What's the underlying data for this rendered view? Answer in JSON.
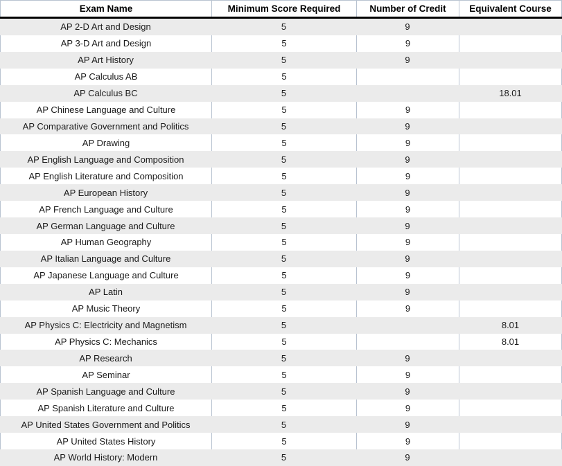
{
  "colors": {
    "band": "#ebebeb",
    "grid": "#b9c3d1",
    "text": "#1a1a1a",
    "header_border": "#000000"
  },
  "table": {
    "columns": [
      {
        "key": "exam",
        "label": "Exam Name"
      },
      {
        "key": "min_score",
        "label": "Minimum Score Required"
      },
      {
        "key": "credits",
        "label": "Number of Credit"
      },
      {
        "key": "equivalent",
        "label": "Equivalent Course"
      }
    ],
    "rows": [
      {
        "exam": "AP 2-D Art and Design",
        "min_score": "5",
        "credits": "9",
        "equivalent": ""
      },
      {
        "exam": "AP 3-D Art and Design",
        "min_score": "5",
        "credits": "9",
        "equivalent": ""
      },
      {
        "exam": "AP Art History",
        "min_score": "5",
        "credits": "9",
        "equivalent": ""
      },
      {
        "exam": "AP Calculus AB",
        "min_score": "5",
        "credits": "",
        "equivalent": ""
      },
      {
        "exam": "AP Calculus BC",
        "min_score": "5",
        "credits": "",
        "equivalent": "18.01"
      },
      {
        "exam": "AP Chinese Language and Culture",
        "min_score": "5",
        "credits": "9",
        "equivalent": ""
      },
      {
        "exam": "AP Comparative Government and Politics",
        "min_score": "5",
        "credits": "9",
        "equivalent": ""
      },
      {
        "exam": "AP Drawing",
        "min_score": "5",
        "credits": "9",
        "equivalent": ""
      },
      {
        "exam": "AP English Language and Composition",
        "min_score": "5",
        "credits": "9",
        "equivalent": ""
      },
      {
        "exam": "AP English Literature and Composition",
        "min_score": "5",
        "credits": "9",
        "equivalent": ""
      },
      {
        "exam": "AP European History",
        "min_score": "5",
        "credits": "9",
        "equivalent": ""
      },
      {
        "exam": "AP French Language and Culture",
        "min_score": "5",
        "credits": "9",
        "equivalent": ""
      },
      {
        "exam": "AP German Language and Culture",
        "min_score": "5",
        "credits": "9",
        "equivalent": ""
      },
      {
        "exam": "AP Human Geography",
        "min_score": "5",
        "credits": "9",
        "equivalent": ""
      },
      {
        "exam": "AP Italian Language and Culture",
        "min_score": "5",
        "credits": "9",
        "equivalent": ""
      },
      {
        "exam": "AP Japanese Language and Culture",
        "min_score": "5",
        "credits": "9",
        "equivalent": ""
      },
      {
        "exam": "AP Latin",
        "min_score": "5",
        "credits": "9",
        "equivalent": ""
      },
      {
        "exam": "AP Music Theory",
        "min_score": "5",
        "credits": "9",
        "equivalent": ""
      },
      {
        "exam": "AP Physics C: Electricity and Magnetism",
        "min_score": "5",
        "credits": "",
        "equivalent": "8.01"
      },
      {
        "exam": "AP Physics C: Mechanics",
        "min_score": "5",
        "credits": "",
        "equivalent": "8.01"
      },
      {
        "exam": "AP Research",
        "min_score": "5",
        "credits": "9",
        "equivalent": ""
      },
      {
        "exam": "AP Seminar",
        "min_score": "5",
        "credits": "9",
        "equivalent": ""
      },
      {
        "exam": "AP Spanish Language and Culture",
        "min_score": "5",
        "credits": "9",
        "equivalent": ""
      },
      {
        "exam": "AP Spanish Literature and Culture",
        "min_score": "5",
        "credits": "9",
        "equivalent": ""
      },
      {
        "exam": "AP United States Government and Politics",
        "min_score": "5",
        "credits": "9",
        "equivalent": ""
      },
      {
        "exam": "AP United States History",
        "min_score": "5",
        "credits": "9",
        "equivalent": ""
      },
      {
        "exam": "AP World History: Modern",
        "min_score": "5",
        "credits": "9",
        "equivalent": ""
      }
    ]
  }
}
